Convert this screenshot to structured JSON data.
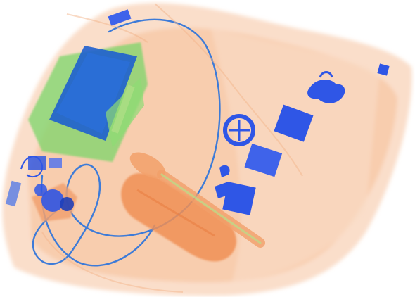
{
  "image": {
    "background": "#ffffff",
    "palette": {
      "organic": "#f3a36e",
      "organic_light": "#f8c9a6",
      "organic_dark": "#e8854a",
      "mixed": "#5fcf5a",
      "metal": "#2f56e6",
      "metal_dark": "#1f3fb8",
      "cable": "#3d7bd8"
    },
    "objects": [
      "bag-outline",
      "laptop",
      "cable-loop",
      "electronics-cluster",
      "bottle",
      "spoon",
      "keys",
      "scissors",
      "cards",
      "steering-wheel-object"
    ]
  }
}
